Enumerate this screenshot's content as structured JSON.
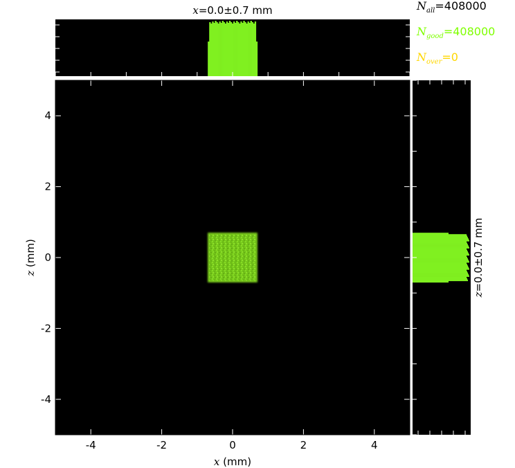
{
  "chart_data": {
    "type": "heatmap",
    "main": {
      "xlabel_var": "x",
      "xlabel_unit": " (mm)",
      "ylabel_var": "z",
      "ylabel_unit": " (mm)",
      "xlim": [
        -5,
        5
      ],
      "ylim": [
        -5,
        5
      ],
      "xticks": [
        -4,
        -2,
        0,
        2,
        4
      ],
      "yticks": [
        -4,
        -2,
        0,
        2,
        4
      ],
      "xtick_labels": [
        "-4",
        "-2",
        "0",
        "2",
        "4"
      ],
      "ytick_labels": [
        "-4",
        "-2",
        "0",
        "2",
        "4"
      ],
      "beam": {
        "x_range": [
          -0.7,
          0.7
        ],
        "z_range": [
          -0.7,
          0.7
        ],
        "color": "#7fd11e"
      },
      "background": "#000000",
      "grid": false
    },
    "top_histogram": {
      "title_var": "x",
      "title_rest": "=0.0±0.7 mm",
      "x_range": [
        -0.7,
        0.7
      ],
      "color": "#80f020"
    },
    "side_histogram": {
      "title_var": "z",
      "title_rest": "=0.0±0.7 mm",
      "z_range": [
        -0.7,
        0.7
      ],
      "color": "#80f020"
    },
    "counts": [
      {
        "symbol": "N",
        "sub": "all",
        "value": "=408000",
        "color": "#000000"
      },
      {
        "symbol": "N",
        "sub": "good",
        "value": "=408000",
        "color": "#7fff00"
      },
      {
        "symbol": "N",
        "sub": "over",
        "value": "=0",
        "color": "#ffd700"
      }
    ]
  }
}
